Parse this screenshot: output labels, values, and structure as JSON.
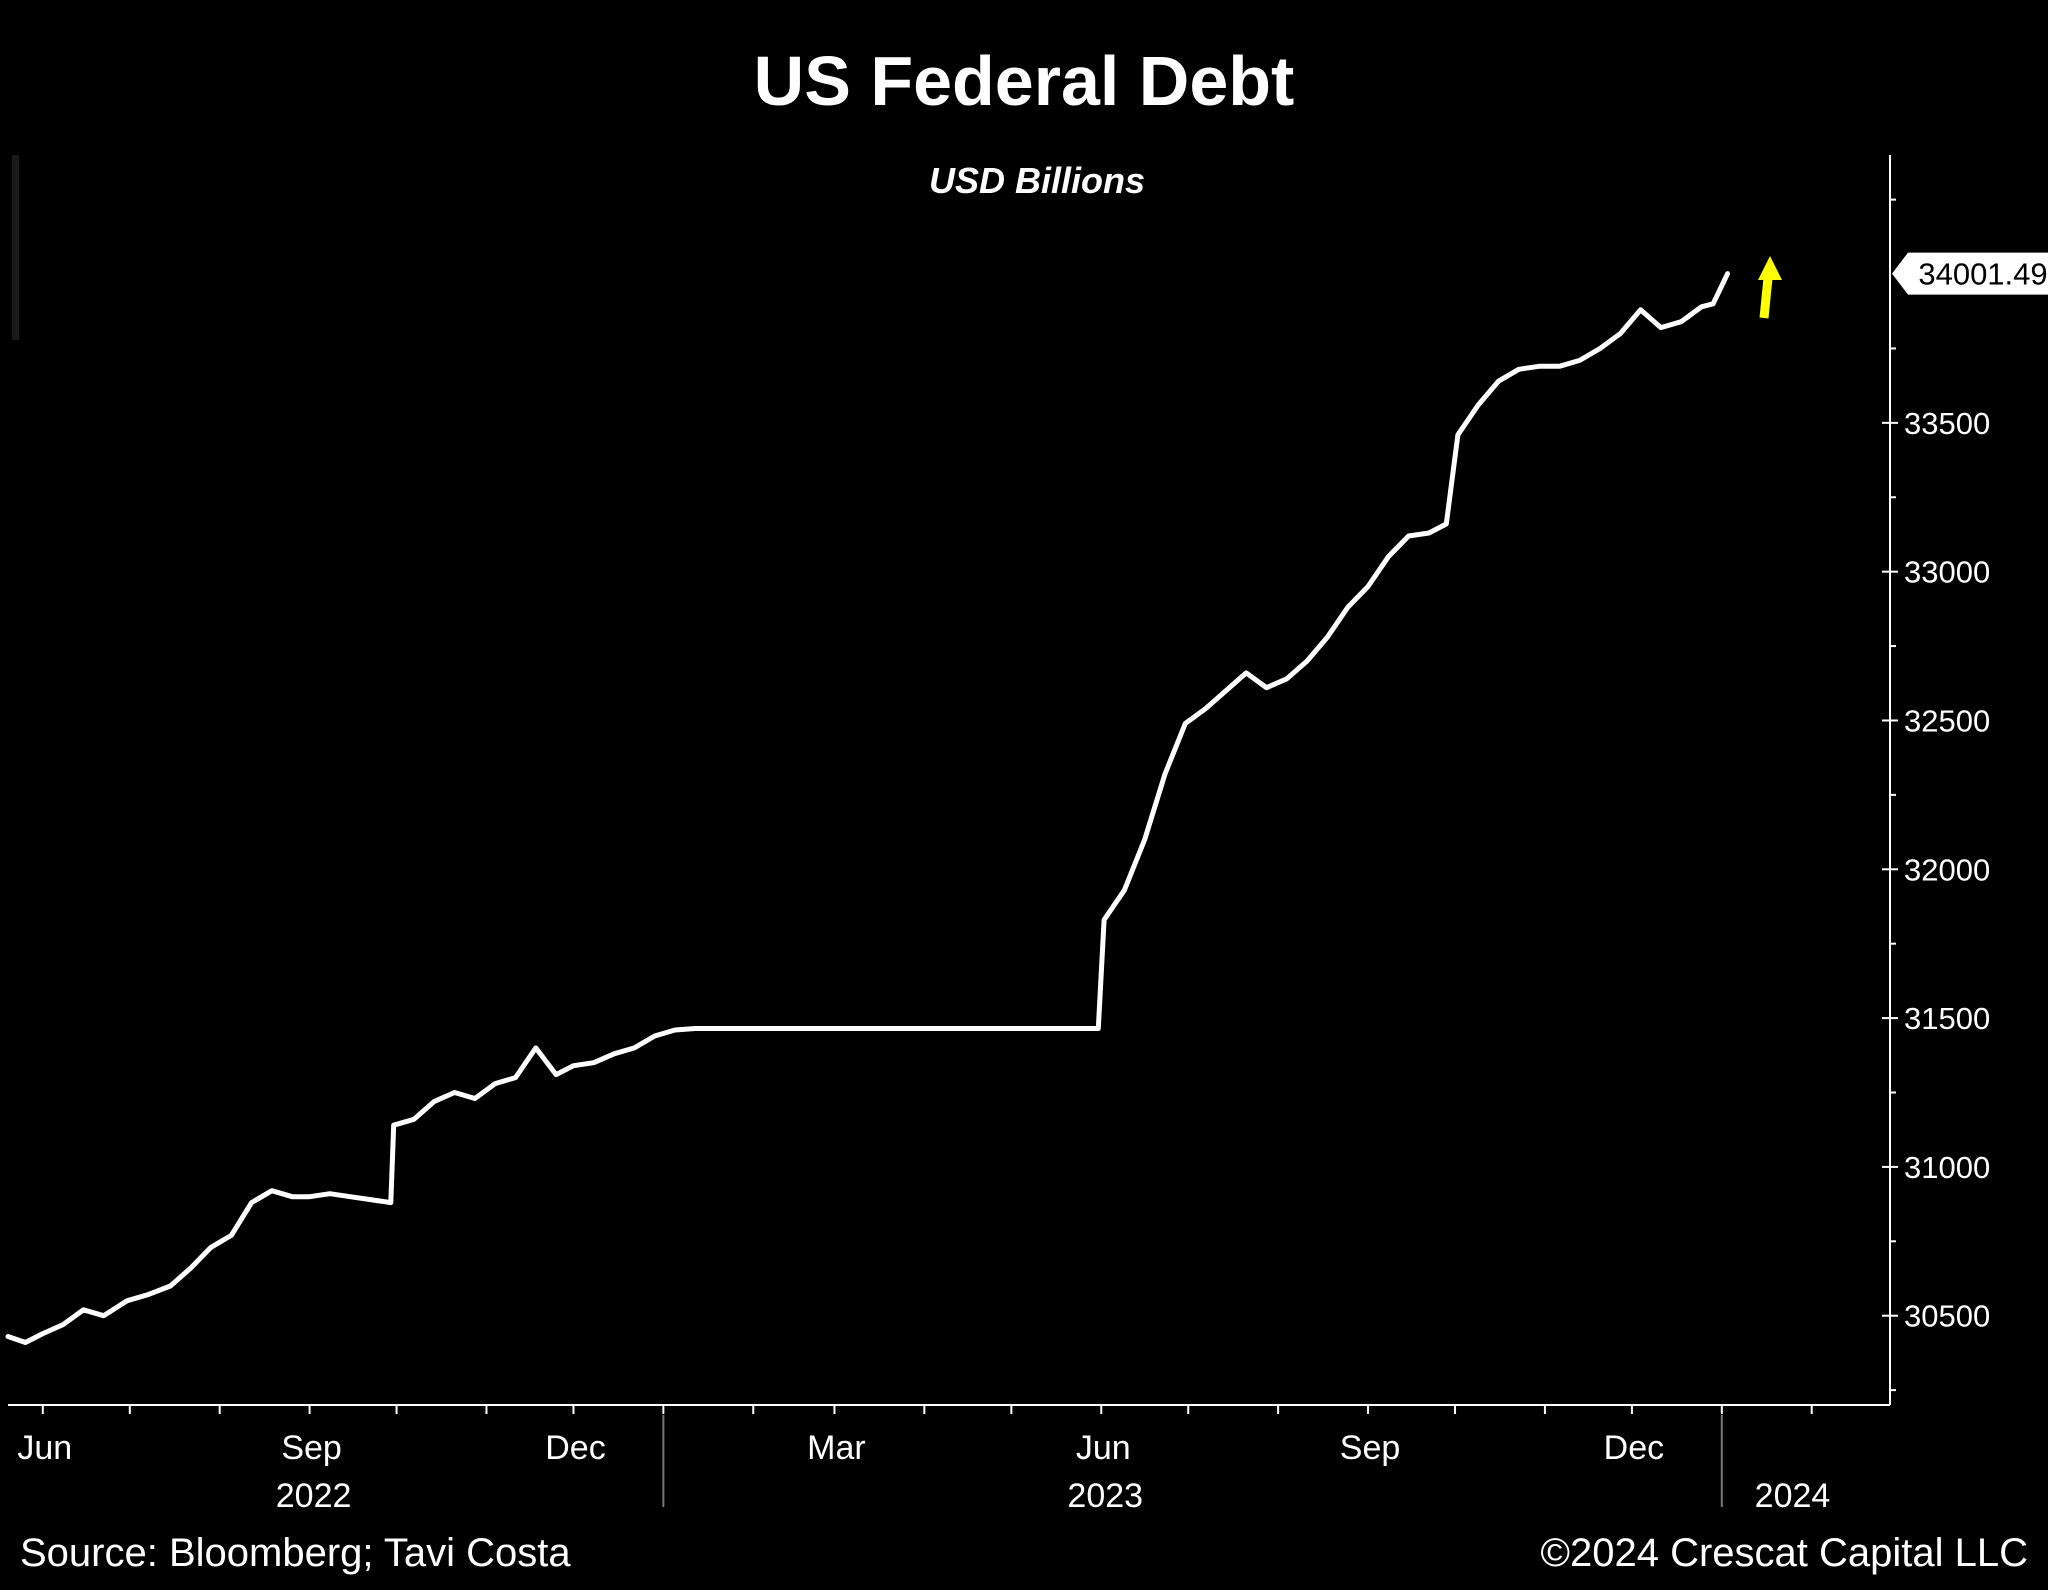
{
  "chart_data": {
    "type": "line",
    "title": "US Federal Debt",
    "subtitle": "USD Billions",
    "xlabel": "",
    "ylabel": "",
    "ylim": [
      30200,
      34400
    ],
    "xlim": [
      "2022-05-20",
      "2024-02-28"
    ],
    "y_ticks": [
      30500,
      31000,
      31500,
      32000,
      32500,
      33000,
      33500
    ],
    "x_tick_labels": [
      {
        "label": "Jun",
        "date": "2022-06-01"
      },
      {
        "label": "Sep",
        "date": "2022-09-01"
      },
      {
        "label": "Dec",
        "date": "2022-12-01"
      },
      {
        "label": "Mar",
        "date": "2023-03-01"
      },
      {
        "label": "Jun",
        "date": "2023-06-01"
      },
      {
        "label": "Sep",
        "date": "2023-09-01"
      },
      {
        "label": "Dec",
        "date": "2023-12-01"
      }
    ],
    "year_labels": [
      {
        "label": "2022",
        "date": "2022-09-01"
      },
      {
        "label": "2023",
        "date": "2023-06-01"
      },
      {
        "label": "2024",
        "date": "2024-01-24"
      }
    ],
    "year_dividers": [
      "2023-01-01",
      "2024-01-01"
    ],
    "last_value_label": "34001.49",
    "annotation": "up-arrow",
    "colors": {
      "background": "#000000",
      "line": "#ffffff",
      "arrow": "#ffff00",
      "text": "#ffffff"
    },
    "grid": false,
    "legend": "none",
    "series": [
      {
        "x": [
          "2022-05-20",
          "2022-05-26",
          "2022-06-01",
          "2022-06-08",
          "2022-06-15",
          "2022-06-22",
          "2022-06-30",
          "2022-07-07",
          "2022-07-15",
          "2022-07-22",
          "2022-07-29",
          "2022-08-05",
          "2022-08-12",
          "2022-08-19",
          "2022-08-26",
          "2022-09-01",
          "2022-09-08",
          "2022-09-15",
          "2022-09-22",
          "2022-09-29",
          "2022-09-30",
          "2022-10-07",
          "2022-10-14",
          "2022-10-21",
          "2022-10-28",
          "2022-11-04",
          "2022-11-11",
          "2022-11-18",
          "2022-11-25",
          "2022-12-01",
          "2022-12-08",
          "2022-12-15",
          "2022-12-22",
          "2022-12-29",
          "2023-01-05",
          "2023-01-12",
          "2023-01-19",
          "2023-02-01",
          "2023-03-01",
          "2023-04-01",
          "2023-05-01",
          "2023-05-31",
          "2023-06-02",
          "2023-06-09",
          "2023-06-16",
          "2023-06-23",
          "2023-06-30",
          "2023-07-07",
          "2023-07-14",
          "2023-07-21",
          "2023-07-28",
          "2023-08-04",
          "2023-08-11",
          "2023-08-18",
          "2023-08-25",
          "2023-09-01",
          "2023-09-08",
          "2023-09-15",
          "2023-09-22",
          "2023-09-28",
          "2023-10-02",
          "2023-10-09",
          "2023-10-16",
          "2023-10-23",
          "2023-10-30",
          "2023-11-06",
          "2023-11-13",
          "2023-11-20",
          "2023-11-27",
          "2023-12-04",
          "2023-12-11",
          "2023-12-18",
          "2023-12-25",
          "2023-12-29",
          "2024-01-03"
        ],
        "y": [
          30430,
          30410,
          30440,
          30470,
          30520,
          30500,
          30550,
          30570,
          30600,
          30660,
          30730,
          30770,
          30880,
          30920,
          30900,
          30900,
          30910,
          30900,
          30890,
          30880,
          31140,
          31160,
          31220,
          31250,
          31230,
          31280,
          31300,
          31400,
          31310,
          31340,
          31350,
          31380,
          31400,
          31440,
          31460,
          31465,
          31465,
          31465,
          31465,
          31465,
          31465,
          31465,
          31830,
          31930,
          32100,
          32320,
          32490,
          32540,
          32600,
          32660,
          32610,
          32640,
          32700,
          32780,
          32880,
          32950,
          33050,
          33120,
          33130,
          33160,
          33460,
          33560,
          33640,
          33680,
          33690,
          33690,
          33710,
          33750,
          33800,
          33880,
          33820,
          33840,
          33890,
          33900,
          34001.49
        ]
      }
    ]
  },
  "footer": {
    "source": "Source: Bloomberg; Tavi Costa",
    "copyright": "©2024 Crescat Capital LLC"
  }
}
